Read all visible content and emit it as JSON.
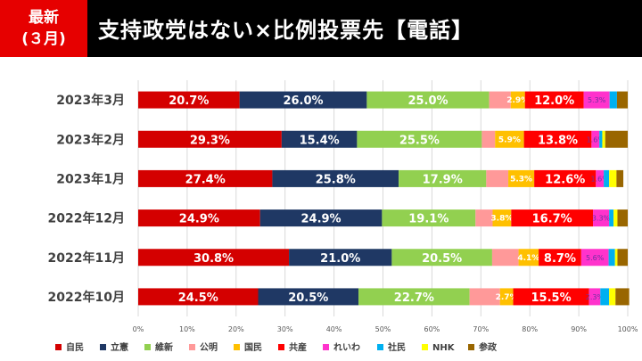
{
  "header": {
    "badge_line1": "最新",
    "badge_line2": "(３月)",
    "title": "支持政党はない×比例投票先【電話】"
  },
  "chart_data": {
    "type": "bar",
    "stacked": true,
    "orientation": "horizontal",
    "title": "支持政党はない×比例投票先【電話】",
    "categories": [
      "2023年3月",
      "2023年2月",
      "2023年1月",
      "2022年12月",
      "2022年11月",
      "2022年10月"
    ],
    "series": [
      {
        "name": "自民",
        "color": "#d40000",
        "values": [
          20.7,
          29.3,
          27.4,
          24.9,
          30.8,
          24.5
        ]
      },
      {
        "name": "立憲",
        "color": "#1f3864",
        "values": [
          26.0,
          15.4,
          25.8,
          24.9,
          21.0,
          20.5
        ]
      },
      {
        "name": "維新",
        "color": "#92d050",
        "values": [
          25.0,
          25.5,
          17.9,
          19.1,
          20.5,
          22.7
        ]
      },
      {
        "name": "公明",
        "color": "#ff9999",
        "values": [
          4.4,
          2.7,
          4.5,
          3.5,
          5.4,
          6.2
        ]
      },
      {
        "name": "国民",
        "color": "#ffc000",
        "values": [
          2.9,
          5.9,
          5.3,
          3.8,
          4.1,
          2.7
        ]
      },
      {
        "name": "共産",
        "color": "#ff0000",
        "values": [
          12.0,
          13.8,
          12.6,
          16.7,
          8.7,
          15.5
        ]
      },
      {
        "name": "れいわ",
        "color": "#ff33cc",
        "values": [
          5.3,
          1.6,
          1.6,
          3.3,
          5.6,
          2.3
        ]
      },
      {
        "name": "社民",
        "color": "#00b0f0",
        "values": [
          1.5,
          0.6,
          1.1,
          0.9,
          1.3,
          1.8
        ]
      },
      {
        "name": "NHK",
        "color": "#ffff00",
        "values": [
          0.0,
          0.6,
          1.5,
          0.8,
          0.5,
          1.3
        ]
      },
      {
        "name": "参政",
        "color": "#996600",
        "values": [
          2.2,
          4.6,
          1.4,
          2.1,
          2.1,
          2.8
        ]
      }
    ],
    "labeled_series": [
      0,
      1,
      2,
      4,
      5,
      6
    ],
    "xlim": [
      0,
      100
    ],
    "xticks": [
      "0%",
      "10%",
      "20%",
      "30%",
      "40%",
      "50%",
      "60%",
      "70%",
      "80%",
      "90%",
      "100%"
    ],
    "legend": "bottom",
    "grid": true
  }
}
